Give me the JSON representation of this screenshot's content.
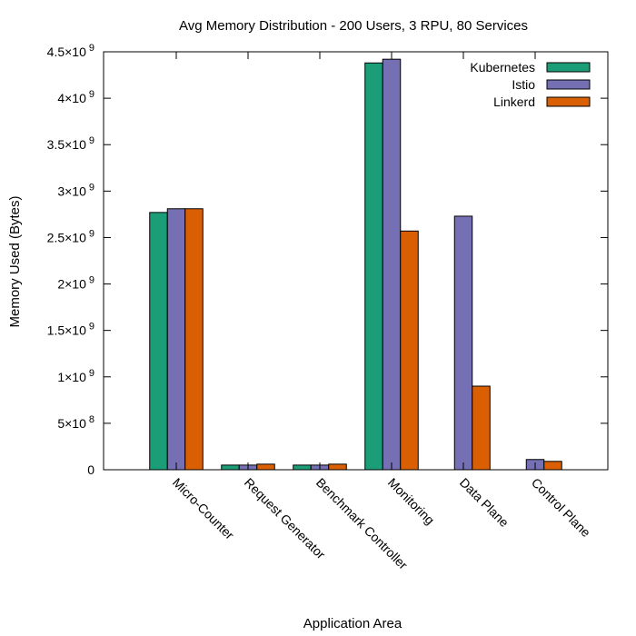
{
  "chart_data": {
    "type": "bar",
    "title": "Avg Memory Distribution - 200 Users, 3 RPU, 80 Services",
    "xlabel": "Application Area",
    "ylabel": "Memory Used (Bytes)",
    "categories": [
      "Micro-Counter",
      "Request Generator",
      "Benchmark Controller",
      "Monitoring",
      "Data Plane",
      "Control Plane"
    ],
    "series": [
      {
        "name": "Kubernetes",
        "color": "#1b9e77",
        "values": [
          2770000000.0,
          50000000.0,
          50000000.0,
          4380000000.0,
          null,
          null
        ]
      },
      {
        "name": "Istio",
        "color": "#7570b3",
        "values": [
          2810000000.0,
          50000000.0,
          50000000.0,
          4420000000.0,
          2730000000.0,
          110000000.0
        ]
      },
      {
        "name": "Linkerd",
        "color": "#d95f02",
        "values": [
          2810000000.0,
          60000000.0,
          60000000.0,
          2570000000.0,
          900000000.0,
          90000000.0
        ]
      }
    ],
    "ylim": [
      0,
      4500000000.0
    ],
    "y_ticks": [
      {
        "value": 0,
        "mantissa": "0",
        "exp": ""
      },
      {
        "value": 500000000.0,
        "mantissa": "5×10",
        "exp": "8"
      },
      {
        "value": 1000000000.0,
        "mantissa": "1×10",
        "exp": "9"
      },
      {
        "value": 1500000000.0,
        "mantissa": "1.5×10",
        "exp": "9"
      },
      {
        "value": 2000000000.0,
        "mantissa": "2×10",
        "exp": "9"
      },
      {
        "value": 2500000000.0,
        "mantissa": "2.5×10",
        "exp": "9"
      },
      {
        "value": 3000000000.0,
        "mantissa": "3×10",
        "exp": "9"
      },
      {
        "value": 3500000000.0,
        "mantissa": "3.5×10",
        "exp": "9"
      },
      {
        "value": 4000000000.0,
        "mantissa": "4×10",
        "exp": "9"
      },
      {
        "value": 4500000000.0,
        "mantissa": "4.5×10",
        "exp": "9"
      }
    ],
    "grid": false,
    "legend_position": "top-right"
  }
}
